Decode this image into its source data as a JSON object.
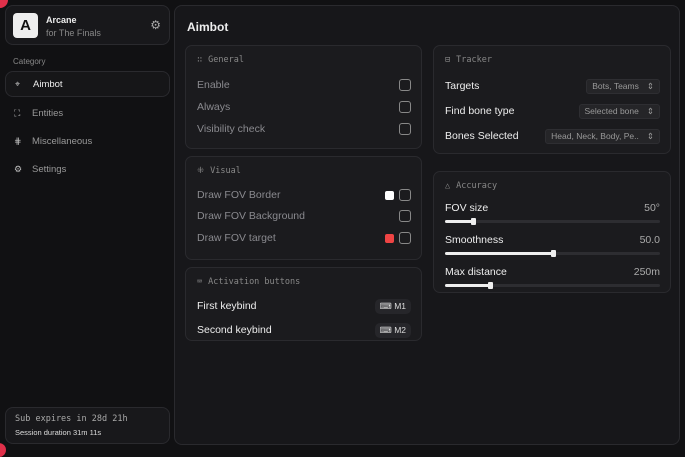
{
  "brand": {
    "logo": "A",
    "name": "Arcane",
    "subtitle": "for The Finals",
    "settings_icon": "gear-icon"
  },
  "sidebar": {
    "category_label": "Category",
    "items": [
      {
        "label": "Aimbot",
        "icon": "crosshair-icon",
        "active": true
      },
      {
        "label": "Entities",
        "icon": "scan-icon"
      },
      {
        "label": "Miscellaneous",
        "icon": "grid-icon"
      },
      {
        "label": "Settings",
        "icon": "gear-icon"
      }
    ]
  },
  "subscription": {
    "expires": "Sub expires in 28d 21h",
    "session": "Session duration 31m 11s"
  },
  "main": {
    "title": "Aimbot",
    "general": {
      "title": "General",
      "rows": [
        {
          "label": "Enable",
          "checked": false
        },
        {
          "label": "Always",
          "checked": false
        },
        {
          "label": "Visibility check",
          "checked": false
        }
      ]
    },
    "visual": {
      "title": "Visual",
      "rows": [
        {
          "label": "Draw FOV Border",
          "color": "#ffffff",
          "checked": false
        },
        {
          "label": "Draw FOV Background",
          "checked": false
        },
        {
          "label": "Draw FOV target",
          "color": "#ef4444",
          "checked": false
        }
      ]
    },
    "activation": {
      "title": "Activation buttons",
      "rows": [
        {
          "label": "First keybind",
          "key": "M1"
        },
        {
          "label": "Second keybind",
          "key": "M2"
        }
      ]
    },
    "tracker": {
      "title": "Tracker",
      "rows": [
        {
          "label": "Targets",
          "value": "Bots, Teams"
        },
        {
          "label": "Find bone type",
          "value": "Selected bone"
        },
        {
          "label": "Bones Selected",
          "value": "Head, Neck, Body, Pe.."
        }
      ]
    },
    "accuracy": {
      "title": "Accuracy",
      "sliders": [
        {
          "label": "FOV size",
          "value": "50°",
          "fraction": 0.13
        },
        {
          "label": "Smoothness",
          "value": "50.0",
          "fraction": 0.5
        },
        {
          "label": "Max distance",
          "value": "250m",
          "fraction": 0.21
        }
      ]
    }
  }
}
